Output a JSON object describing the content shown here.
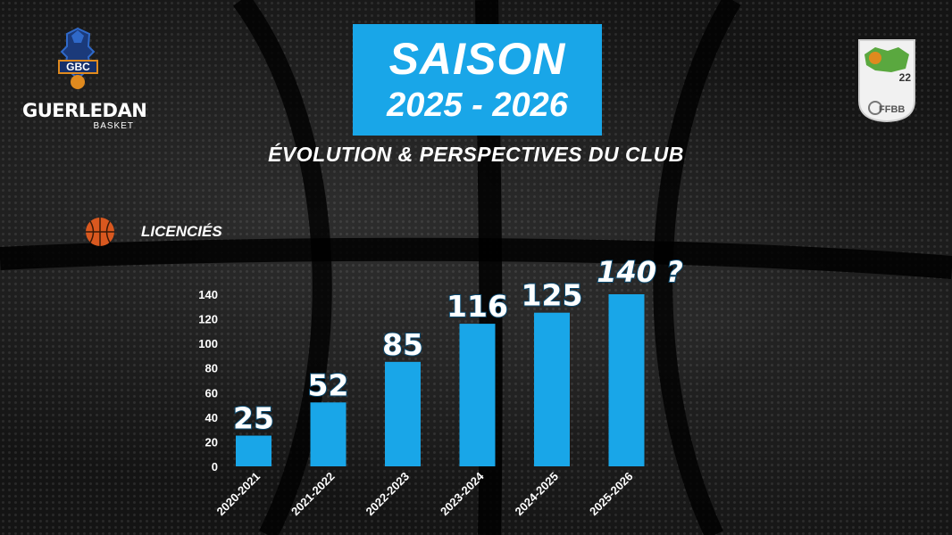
{
  "header": {
    "title_line1": "SAISON",
    "title_line2": "2025 - 2026",
    "subtitle": "ÉVOLUTION & PERSPECTIVES DU CLUB"
  },
  "logos": {
    "club_initials": "GBC",
    "club_name": "GUERLEDAN",
    "club_sub": "BASKET",
    "committee_number": "22",
    "federation": "FFBB"
  },
  "colors": {
    "accent": "#19a6e8"
  },
  "chart_data": {
    "type": "bar",
    "series_label": "LICENCIÉS",
    "categories": [
      "2020-2021",
      "2021-2022",
      "2022-2023",
      "2023-2024",
      "2024-2025",
      "2025-2026"
    ],
    "values": [
      25,
      52,
      85,
      116,
      125,
      140
    ],
    "data_labels": [
      "25",
      "52",
      "85",
      "116",
      "125",
      "140 ?"
    ],
    "yticks": [
      0,
      20,
      40,
      60,
      80,
      100,
      120,
      140
    ],
    "ylim": [
      0,
      140
    ],
    "grid": false,
    "legend": "none"
  }
}
